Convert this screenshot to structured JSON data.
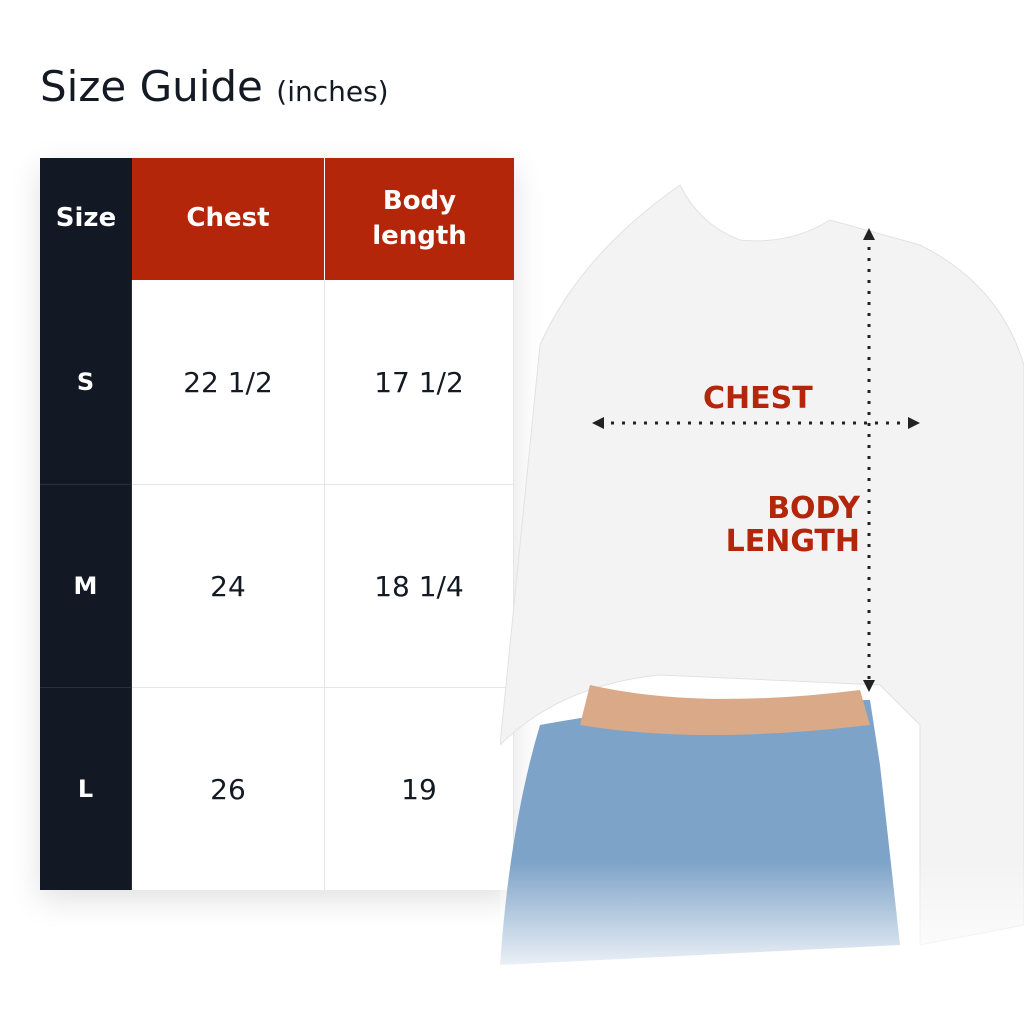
{
  "title": "Size Guide",
  "unit": "(inches)",
  "headers": [
    "Size",
    "Chest",
    "Body length"
  ],
  "rows": [
    [
      "S",
      "22 1/2",
      "17 1/2"
    ],
    [
      "M",
      "24",
      "18 1/4"
    ],
    [
      "L",
      "26",
      "19"
    ]
  ],
  "diagram": {
    "chest": "CHEST",
    "body_length": "BODY LENGTH"
  },
  "colors": {
    "accent": "#b3260a",
    "dark": "#131924"
  }
}
